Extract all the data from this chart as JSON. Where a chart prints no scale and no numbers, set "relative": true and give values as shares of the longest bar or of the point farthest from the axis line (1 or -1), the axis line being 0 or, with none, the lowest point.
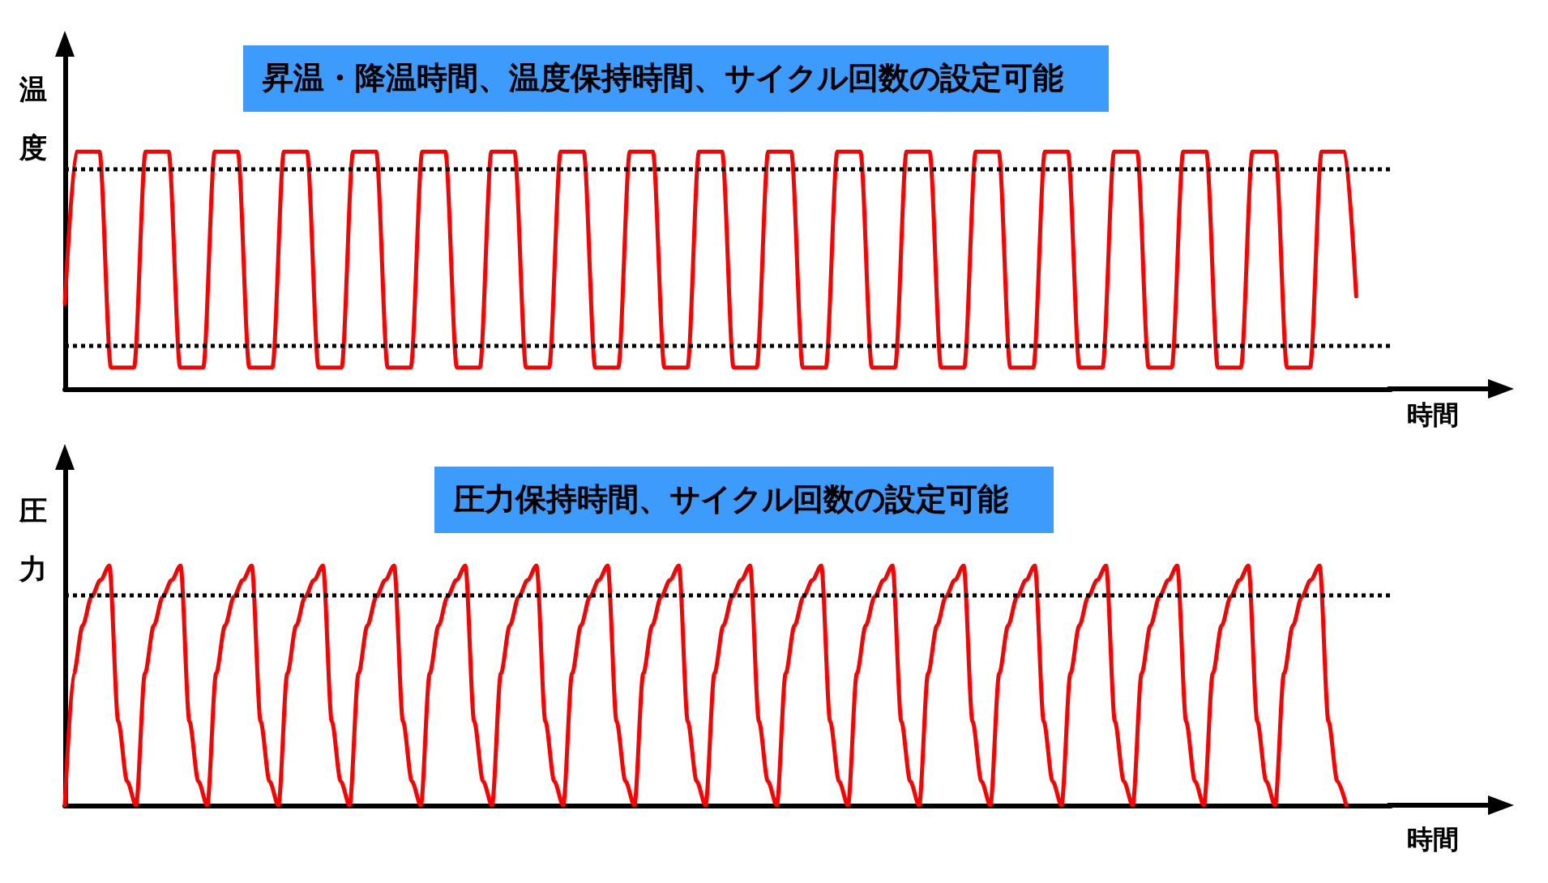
{
  "chart_data": [
    {
      "type": "line",
      "title": "昇温・降温時間、温度保持時間、サイクル回数の設定可能",
      "xlabel": "時間",
      "ylabel": "温度",
      "relative": true,
      "categories": [
        null,
        null,
        null,
        null,
        null,
        null,
        null,
        null,
        null,
        null,
        null,
        null,
        null,
        null,
        null,
        null,
        null,
        null,
        null,
        null,
        null,
        null,
        null,
        null,
        null,
        null,
        null,
        null,
        null,
        null,
        null,
        null,
        null,
        null,
        null,
        null,
        null,
        null,
        null,
        null,
        null,
        null,
        null,
        null,
        null,
        null,
        null,
        null,
        null,
        null,
        null,
        null,
        null,
        null,
        null,
        null,
        null,
        null,
        null,
        null,
        null,
        null,
        null,
        null,
        null,
        null,
        null,
        null,
        null,
        null,
        null,
        null,
        null,
        null,
        null,
        null,
        null,
        null,
        null,
        null,
        null,
        null,
        null,
        null,
        null,
        null,
        null,
        null,
        null,
        null,
        null,
        null,
        null,
        null,
        null,
        null,
        null,
        null,
        null,
        null,
        null,
        null,
        null,
        null,
        null,
        null,
        null,
        null,
        null,
        null,
        null,
        null,
        null,
        null,
        null,
        null
      ],
      "series": [
        {
          "color": "#ff0000",
          "values": [
            0.36,
            1,
            1,
            1,
            0.09,
            0.09,
            0.09,
            1,
            1,
            1,
            0.09,
            0.09,
            0.09,
            1,
            1,
            1,
            0.09,
            0.09,
            0.09,
            1,
            1,
            1,
            0.09,
            0.09,
            0.09,
            1,
            1,
            1,
            0.09,
            0.09,
            0.09,
            1,
            1,
            1,
            0.09,
            0.09,
            0.09,
            1,
            1,
            1,
            0.09,
            0.09,
            0.09,
            1,
            1,
            1,
            0.09,
            0.09,
            0.09,
            1,
            1,
            1,
            0.09,
            0.09,
            0.09,
            1,
            1,
            1,
            0.09,
            0.09,
            0.09,
            1,
            1,
            1,
            0.09,
            0.09,
            0.09,
            1,
            1,
            1,
            0.09,
            0.09,
            0.09,
            1,
            1,
            1,
            0.09,
            0.09,
            0.09,
            1,
            1,
            1,
            0.09,
            0.09,
            0.09,
            1,
            1,
            1,
            0.09,
            0.09,
            0.09,
            1,
            1,
            1,
            0.09,
            0.09,
            0.09,
            1,
            1,
            1,
            0.09,
            0.09,
            0.09,
            1,
            1,
            1,
            0.09,
            0.09,
            0.09,
            1,
            1,
            1,
            0.39,
            null,
            null,
            null
          ]
        }
      ],
      "ref_lines": [
        {
          "axis": "y",
          "value": 0.93,
          "color": "#000000",
          "line_style": "dotted"
        },
        {
          "axis": "y",
          "value": 0.18,
          "color": "#000000",
          "line_style": "dotted"
        }
      ]
    },
    {
      "type": "line",
      "title": "圧力保持時間、サイクル回数の設定可能",
      "xlabel": "時間",
      "ylabel": "圧力",
      "relative": true,
      "categories": [
        null,
        null,
        null,
        null,
        null,
        null,
        null,
        null,
        null,
        null,
        null,
        null,
        null,
        null,
        null,
        null,
        null,
        null,
        null,
        null,
        null,
        null,
        null,
        null,
        null,
        null,
        null,
        null,
        null,
        null,
        null,
        null,
        null,
        null,
        null,
        null,
        null,
        null,
        null,
        null,
        null,
        null,
        null,
        null,
        null,
        null,
        null,
        null,
        null,
        null,
        null,
        null,
        null,
        null,
        null,
        null,
        null,
        null,
        null,
        null,
        null,
        null,
        null,
        null,
        null,
        null,
        null,
        null,
        null,
        null,
        null,
        null,
        null,
        null,
        null,
        null,
        null,
        null,
        null,
        null,
        null,
        null,
        null,
        null,
        null,
        null,
        null,
        null,
        null,
        null,
        null,
        null,
        null,
        null,
        null,
        null,
        null,
        null,
        null,
        null,
        null,
        null,
        null,
        null,
        null,
        null,
        null,
        null,
        null,
        null,
        null,
        null,
        null,
        null,
        null,
        null,
        null,
        null,
        null,
        null,
        null,
        null,
        null,
        null,
        null,
        null,
        null,
        null,
        null,
        null,
        null,
        null,
        null,
        null,
        null,
        null,
        null,
        null,
        null,
        null,
        null,
        null,
        null,
        null,
        null,
        null,
        null,
        null,
        null,
        null
      ],
      "series": [
        {
          "color": "#ff0000",
          "values": [
            0,
            0.55,
            0.75,
            0.87,
            0.94,
            1,
            0.35,
            0.1,
            0,
            0.55,
            0.75,
            0.87,
            0.94,
            1,
            0.35,
            0.1,
            0,
            0.55,
            0.75,
            0.87,
            0.94,
            1,
            0.35,
            0.1,
            0,
            0.55,
            0.75,
            0.87,
            0.94,
            1,
            0.35,
            0.1,
            0,
            0.55,
            0.75,
            0.87,
            0.94,
            1,
            0.35,
            0.1,
            0,
            0.55,
            0.75,
            0.87,
            0.94,
            1,
            0.35,
            0.1,
            0,
            0.55,
            0.75,
            0.87,
            0.94,
            1,
            0.35,
            0.1,
            0,
            0.55,
            0.75,
            0.87,
            0.94,
            1,
            0.35,
            0.1,
            0,
            0.55,
            0.75,
            0.87,
            0.94,
            1,
            0.35,
            0.1,
            0,
            0.55,
            0.75,
            0.87,
            0.94,
            1,
            0.35,
            0.1,
            0,
            0.55,
            0.75,
            0.87,
            0.94,
            1,
            0.35,
            0.1,
            0,
            0.55,
            0.75,
            0.87,
            0.94,
            1,
            0.35,
            0.1,
            0,
            0.55,
            0.75,
            0.87,
            0.94,
            1,
            0.35,
            0.1,
            0,
            0.55,
            0.75,
            0.87,
            0.94,
            1,
            0.35,
            0.1,
            0,
            0.55,
            0.75,
            0.87,
            0.94,
            1,
            0.35,
            0.1,
            0,
            0.55,
            0.75,
            0.87,
            0.94,
            1,
            0.35,
            0.1,
            0,
            0.55,
            0.75,
            0.87,
            0.94,
            1,
            0.35,
            0.1,
            0,
            0.55,
            0.75,
            0.87,
            0.94,
            1,
            0.35,
            0.1,
            0,
            null,
            null,
            null,
            null,
            null
          ]
        }
      ],
      "ref_lines": [
        {
          "axis": "y",
          "value": 0.88,
          "color": "#000000",
          "line_style": "dotted"
        }
      ]
    }
  ]
}
